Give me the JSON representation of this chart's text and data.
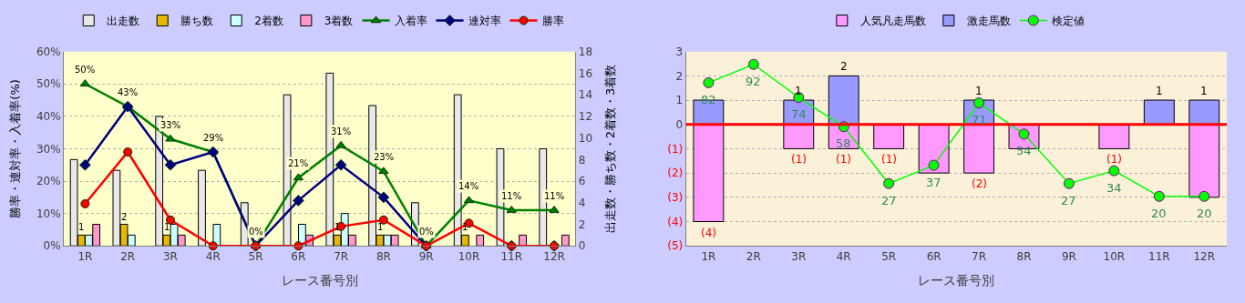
{
  "chart_data": [
    {
      "type": "bar",
      "xlabel": "レース番号別",
      "ylabel": "勝率・連対率・入着率(%)",
      "y2label": "出走数・勝ち数・2着数・3着数",
      "categories": [
        "1R",
        "2R",
        "3R",
        "4R",
        "5R",
        "6R",
        "7R",
        "8R",
        "9R",
        "10R",
        "11R",
        "12R"
      ],
      "ylim": [
        0,
        60
      ],
      "yticks": [
        {
          "value": 0,
          "label": "0%"
        },
        {
          "value": 10,
          "label": "10%"
        },
        {
          "value": 20,
          "label": "20%"
        },
        {
          "value": 30,
          "label": "30%"
        },
        {
          "value": 40,
          "label": "40%"
        },
        {
          "value": 50,
          "label": "50%"
        },
        {
          "value": 60,
          "label": "60%"
        }
      ],
      "y2lim": [
        0,
        18
      ],
      "y2ticks": [
        0,
        2,
        4,
        6,
        8,
        10,
        12,
        14,
        16,
        18
      ],
      "grid": true,
      "legend": "top",
      "series": [
        {
          "name": "出走数",
          "axis": "y2",
          "color": "#e8e8e8",
          "values": [
            8,
            7,
            12,
            7,
            4,
            14,
            16,
            13,
            4,
            14,
            9,
            9
          ]
        },
        {
          "name": "勝ち数",
          "axis": "y2",
          "color": "#e6b800",
          "values": [
            1,
            2,
            1,
            0,
            0,
            0,
            1,
            1,
            0,
            1,
            0,
            0
          ],
          "value_labels": [
            "1",
            "2",
            "1",
            null,
            null,
            null,
            "1",
            "1",
            null,
            "1",
            null,
            null
          ]
        },
        {
          "name": "2着数",
          "axis": "y2",
          "color": "#ccffff",
          "values": [
            1,
            1,
            2,
            2,
            0,
            2,
            3,
            1,
            0,
            0,
            0,
            0
          ]
        },
        {
          "name": "3着数",
          "axis": "y2",
          "color": "#ff99cc",
          "values": [
            2,
            0,
            1,
            0,
            0,
            1,
            1,
            1,
            0,
            1,
            1,
            1
          ]
        },
        {
          "name": "入着率",
          "type": "line",
          "color": "#008000",
          "marker": "triangle",
          "values": [
            50,
            43,
            33,
            29,
            0,
            21,
            31,
            23,
            0,
            14,
            11,
            11
          ],
          "value_labels": [
            "50%",
            "43%",
            "33%",
            "29%",
            "0%",
            "21%",
            "31%",
            "23%",
            "0%",
            "14%",
            "11%",
            "11%"
          ]
        },
        {
          "name": "連対率",
          "type": "line",
          "color": "#000080",
          "marker": "diamond",
          "values": [
            25,
            43,
            25,
            29,
            0,
            14,
            25,
            15,
            0,
            null,
            0,
            0
          ]
        },
        {
          "name": "勝率",
          "type": "line",
          "color": "#ff0000",
          "marker": "circle",
          "values": [
            13,
            29,
            8,
            0,
            0,
            0,
            6,
            8,
            0,
            7,
            0,
            0
          ]
        }
      ]
    },
    {
      "type": "bar",
      "stacked": true,
      "xlabel": "レース番号別",
      "categories": [
        "1R",
        "2R",
        "3R",
        "4R",
        "5R",
        "6R",
        "7R",
        "8R",
        "9R",
        "10R",
        "11R",
        "12R"
      ],
      "ylim": [
        -5,
        3
      ],
      "yticks": [
        {
          "value": -5,
          "label": "(5)"
        },
        {
          "value": -4,
          "label": "(4)"
        },
        {
          "value": -3,
          "label": "(3)"
        },
        {
          "value": -2,
          "label": "(2)"
        },
        {
          "value": -1,
          "label": "(1)"
        },
        0,
        1,
        2,
        3
      ],
      "y2lim": [
        -7,
        99
      ],
      "grid": true,
      "legend": "top",
      "ref_lines": [
        {
          "axis": "y",
          "value": 0,
          "color": "#ff0000"
        }
      ],
      "series": [
        {
          "name": "人気凡走馬数",
          "color": "#ff99ff",
          "values": [
            -4,
            0,
            -1,
            -1,
            -1,
            -2,
            -2,
            -1,
            0,
            -1,
            0,
            -3
          ],
          "value_labels": [
            "(4)",
            null,
            "(1)",
            "(1)",
            "(1)",
            null,
            "(2)",
            null,
            null,
            "(1)",
            null,
            null
          ]
        },
        {
          "name": "激走馬数",
          "color": "#9999ff",
          "values": [
            1,
            0,
            1,
            2,
            0,
            0,
            1,
            0,
            0,
            0,
            1,
            1
          ],
          "value_labels": [
            null,
            null,
            "1",
            "2",
            null,
            null,
            "1",
            null,
            null,
            null,
            "1",
            "1"
          ]
        },
        {
          "name": "検定値",
          "type": "line",
          "axis": "y2",
          "color": "#00ff00",
          "marker": "circle",
          "values": [
            82,
            92,
            74,
            58,
            27,
            37,
            71,
            54,
            27,
            34,
            20,
            20
          ],
          "value_labels": [
            "82",
            "92",
            "74",
            "58",
            "27",
            "37",
            "71",
            "54",
            "27",
            "34",
            "20",
            "20"
          ]
        }
      ]
    }
  ]
}
